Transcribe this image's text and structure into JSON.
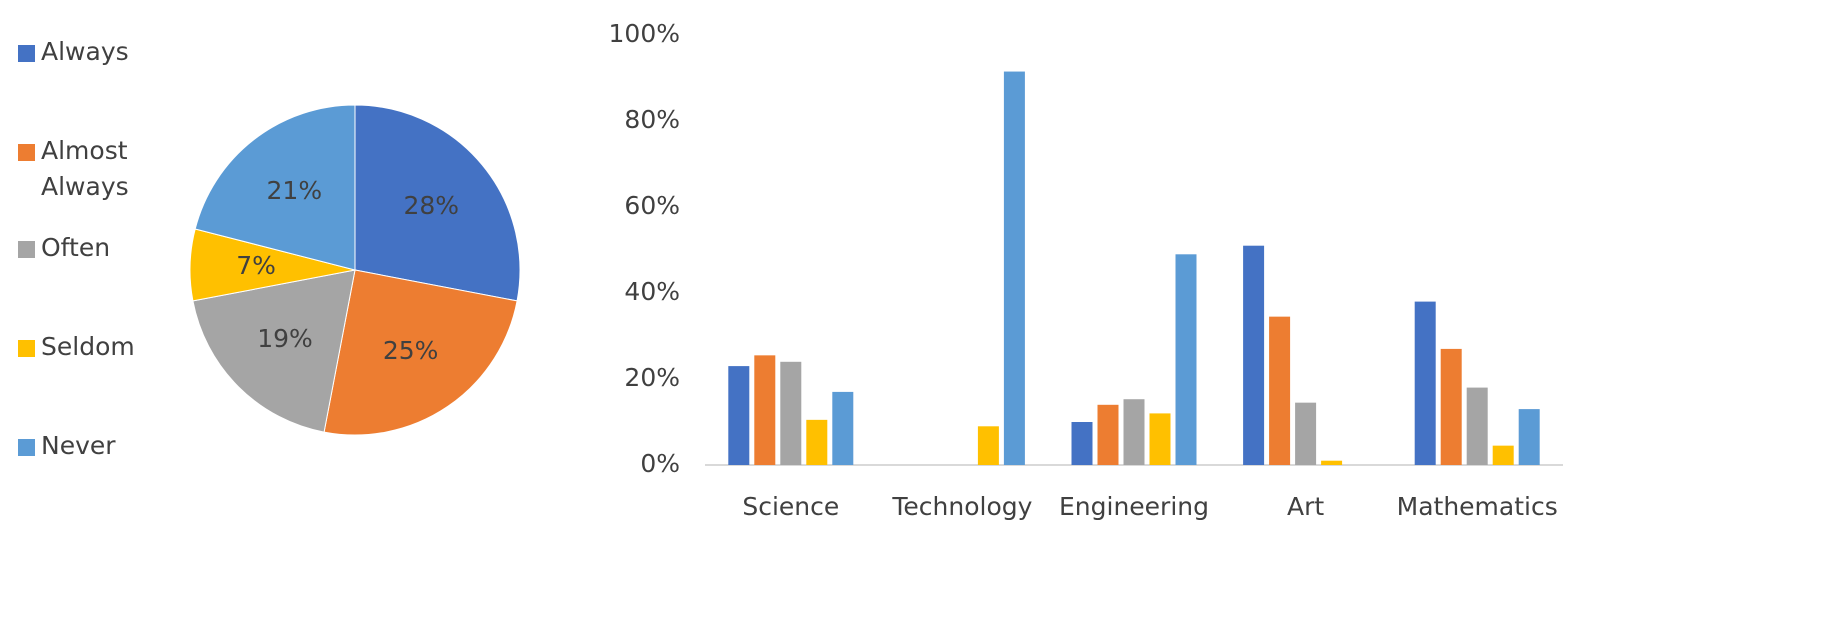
{
  "chart_data": [
    {
      "type": "pie",
      "title": "",
      "legend_placement": "left",
      "slices": [
        {
          "label": "Always",
          "value": 28,
          "display": "28%",
          "color": "#4472C4"
        },
        {
          "label": "Almost Always",
          "value": 25,
          "display": "25%",
          "color": "#ED7D31"
        },
        {
          "label": "Often",
          "value": 19,
          "display": "19%",
          "color": "#A5A5A5"
        },
        {
          "label": "Seldom",
          "value": 7,
          "display": "7%",
          "color": "#FFC000"
        },
        {
          "label": "Never",
          "value": 21,
          "display": "21%",
          "color": "#5B9BD5"
        }
      ]
    },
    {
      "type": "bar",
      "title": "",
      "xlabel": "",
      "ylabel": "",
      "ylim": [
        0,
        100
      ],
      "yticks": [
        "0%",
        "20%",
        "40%",
        "60%",
        "80%",
        "100%"
      ],
      "categories": [
        "Science",
        "Technology",
        "Engineering",
        "Art",
        "Mathematics"
      ],
      "grid": false,
      "series": [
        {
          "name": "Always",
          "color": "#4472C4",
          "values": [
            23,
            0,
            10,
            51,
            38
          ]
        },
        {
          "name": "Almost Always",
          "color": "#ED7D31",
          "values": [
            25.5,
            0,
            14,
            34.5,
            27
          ]
        },
        {
          "name": "Often",
          "color": "#A5A5A5",
          "values": [
            24,
            0,
            15.3,
            14.5,
            18
          ]
        },
        {
          "name": "Seldom",
          "color": "#FFC000",
          "values": [
            10.5,
            9,
            12,
            1,
            4.5
          ]
        },
        {
          "name": "Never",
          "color": "#5B9BD5",
          "values": [
            17,
            91.5,
            49,
            0,
            13
          ]
        }
      ]
    }
  ]
}
